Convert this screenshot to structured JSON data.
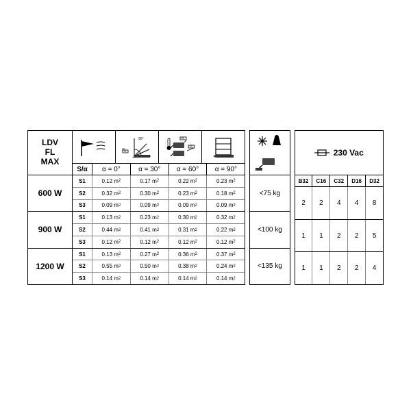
{
  "header": {
    "title_lines": [
      "LDV",
      "FL",
      "MAX"
    ],
    "sa_label": "S/α",
    "angles": [
      "α = 0°",
      "α = 30°",
      "α = 60°",
      "α = 90°"
    ],
    "voltage": "230 Vac",
    "breakers": [
      "B32",
      "C16",
      "C32",
      "D16",
      "D32"
    ]
  },
  "unit_html": " m<sup>2</sup>",
  "groups": [
    {
      "watt": "600 W",
      "weight": "<75 kg",
      "s": [
        {
          "name": "S1",
          "v": [
            "0.12",
            "0.17",
            "0.22",
            "0.23"
          ]
        },
        {
          "name": "S2",
          "v": [
            "0.32",
            "0.30",
            "0.23",
            "0.18"
          ]
        },
        {
          "name": "S3",
          "v": [
            "0.09",
            "0.09",
            "0.09",
            "0.09"
          ]
        }
      ],
      "breakers": [
        "2",
        "2",
        "4",
        "4",
        "8"
      ]
    },
    {
      "watt": "900 W",
      "weight": "<100 kg",
      "s": [
        {
          "name": "S1",
          "v": [
            "0.13",
            "0.23",
            "0.30",
            "0.32"
          ]
        },
        {
          "name": "S2",
          "v": [
            "0.44",
            "0.41",
            "0.31",
            "0.22"
          ]
        },
        {
          "name": "S3",
          "v": [
            "0.12",
            "0.12",
            "0.12",
            "0.12"
          ]
        }
      ],
      "breakers": [
        "1",
        "1",
        "2",
        "2",
        "5"
      ]
    },
    {
      "watt": "1200 W",
      "weight": "<135 kg",
      "s": [
        {
          "name": "S1",
          "v": [
            "0.13",
            "0.27",
            "0.36",
            "0.37"
          ]
        },
        {
          "name": "S2",
          "v": [
            "0.55",
            "0.50",
            "0.38",
            "0.24"
          ]
        },
        {
          "name": "S3",
          "v": [
            "0.14",
            "0.14",
            "0.14",
            "0.14"
          ]
        }
      ],
      "breakers": [
        "1",
        "1",
        "2",
        "2",
        "4"
      ]
    }
  ],
  "style": {
    "border_color": "#000000",
    "subdiv_color": "#888888",
    "background": "#ffffff",
    "font": "Arial",
    "title_fontsize": 12,
    "label_fontsize": 10,
    "data_fontsize": 8
  }
}
